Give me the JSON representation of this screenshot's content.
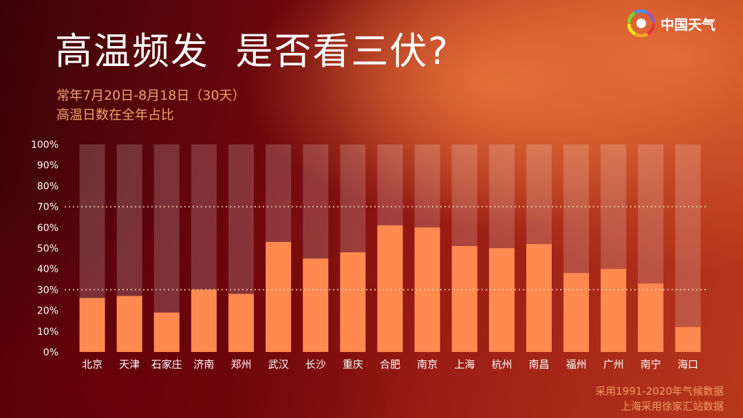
{
  "header": {
    "title": "高温频发  是否看三伏?",
    "subtitle_line1": "常年7月20日-8月18日（30天）",
    "subtitle_line2": "高温日数在全年占比"
  },
  "logo": {
    "text": "中国天气",
    "icon": "pinwheel-logo-icon"
  },
  "colors": {
    "bar": "#ff8a50",
    "bar_track": "rgba(255,255,255,0.18)",
    "tick_text": "#ffffff",
    "reference_line": "#f6d2b8"
  },
  "chart_data": {
    "type": "bar",
    "categories": [
      "北京",
      "天津",
      "石家庄",
      "济南",
      "郑州",
      "武汉",
      "长沙",
      "重庆",
      "合肥",
      "南京",
      "上海",
      "杭州",
      "南昌",
      "福州",
      "广州",
      "南宁",
      "海口"
    ],
    "values": [
      26,
      27,
      19,
      30,
      28,
      53,
      45,
      48,
      61,
      60,
      51,
      50,
      52,
      38,
      40,
      33,
      12
    ],
    "ylim": [
      0,
      100
    ],
    "yticks": [
      "0%",
      "10%",
      "20%",
      "30%",
      "40%",
      "50%",
      "60%",
      "70%",
      "80%",
      "90%",
      "100%"
    ],
    "reference_lines": [
      30,
      70
    ],
    "background_bar_value": 100,
    "grid": false,
    "legend": "none"
  },
  "footer": {
    "source_line1": "采用1991-2020年气候数据",
    "source_line2": "上海采用徐家汇站数据"
  }
}
